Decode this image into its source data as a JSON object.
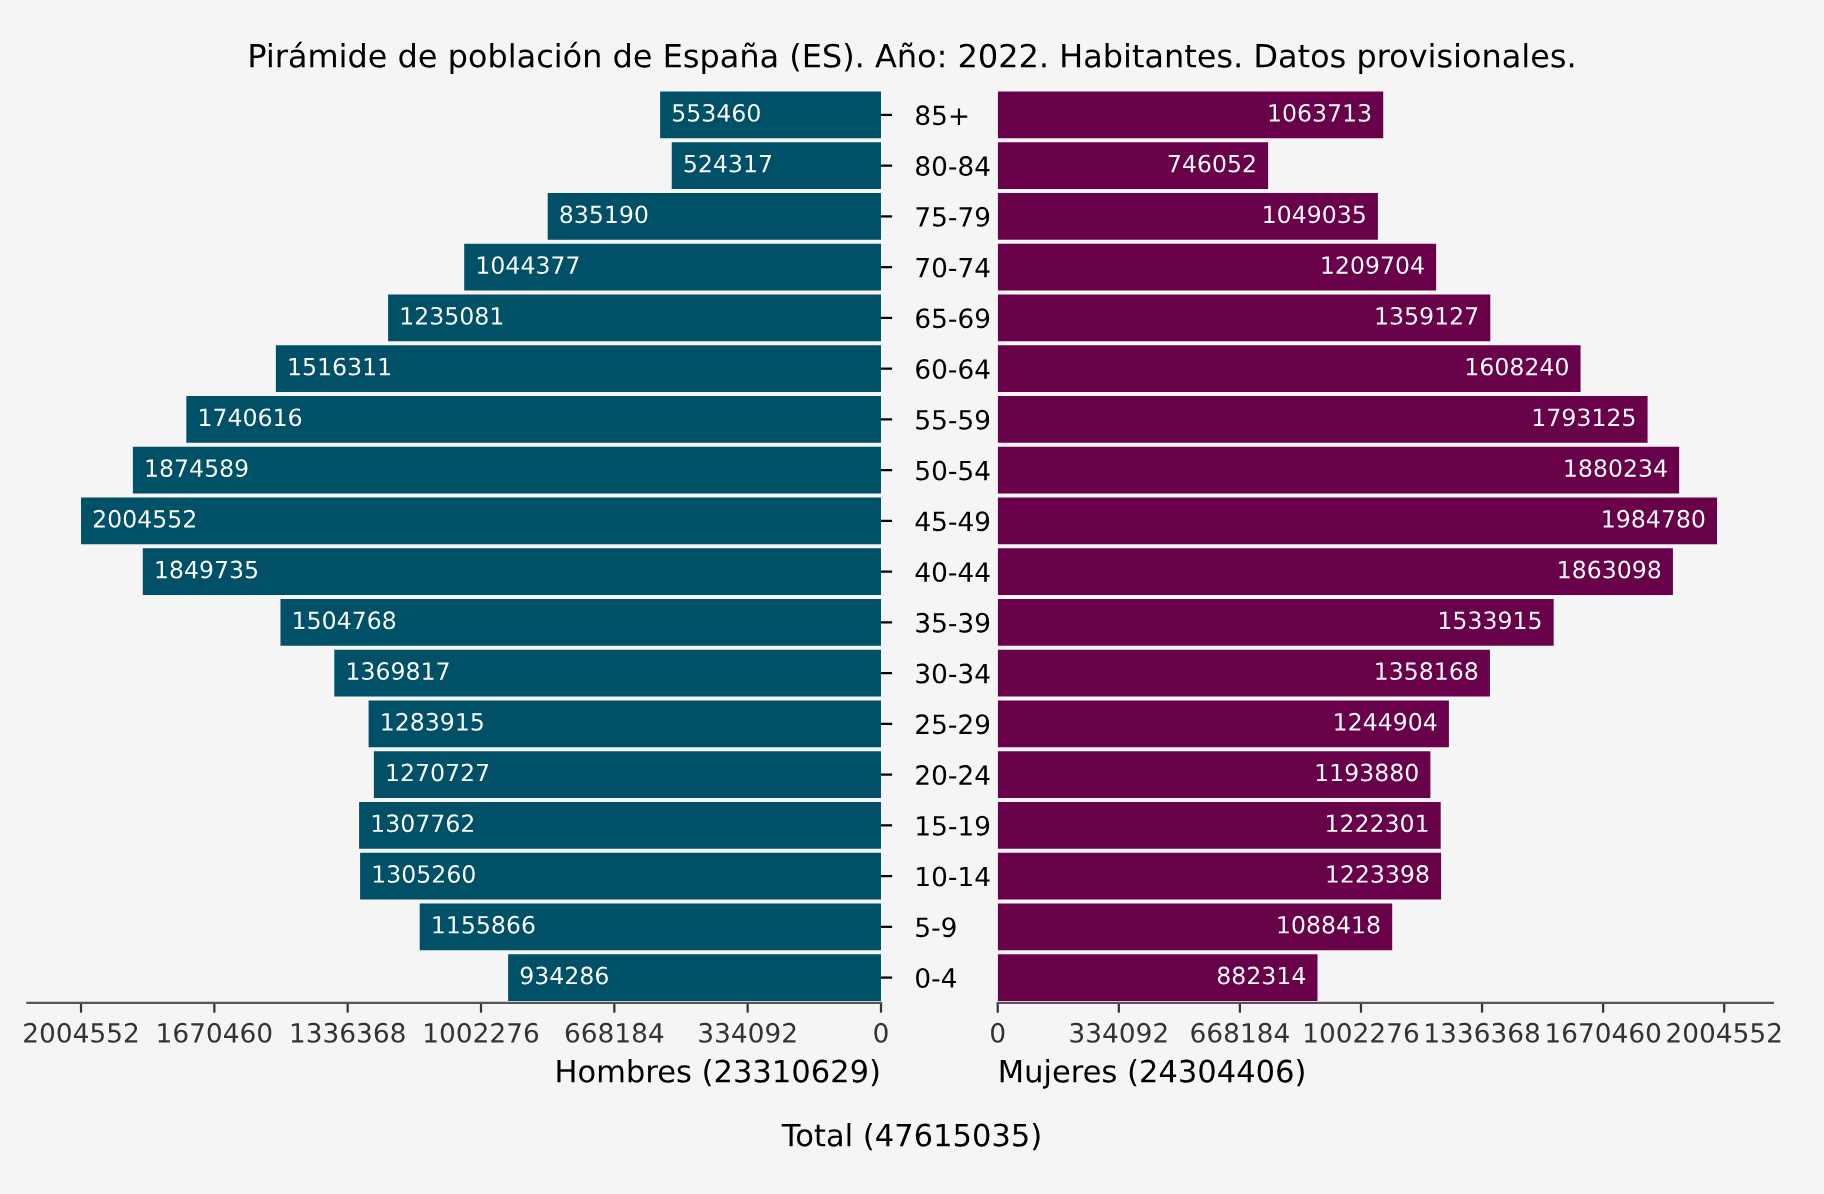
{
  "chart_data": [
    {
      "type": "bar",
      "orientation": "horizontal",
      "title": "Pirámide de población de España (ES). Año: 2022. Habitantes. Datos provisionales.",
      "xlabel": "Hombres (23310629)",
      "annotations": [
        "Total (47615035)"
      ],
      "categories": [
        "85+",
        "80-84",
        "75-79",
        "70-74",
        "65-69",
        "60-64",
        "55-59",
        "50-54",
        "45-49",
        "40-44",
        "35-39",
        "30-34",
        "25-29",
        "20-24",
        "15-19",
        "10-14",
        "5-9",
        "0-4"
      ],
      "values": [
        553460,
        524317,
        835190,
        1044377,
        1235081,
        1516311,
        1740616,
        1874589,
        2004552,
        1849735,
        1504768,
        1369817,
        1283915,
        1270727,
        1307762,
        1305260,
        1155866,
        934286
      ],
      "color": "#005068",
      "data_labels": true,
      "grid": false,
      "legend": false,
      "xlim": [
        2139000,
        0
      ],
      "xticks": [
        0,
        334092,
        668184,
        1002276,
        1336368,
        1670460,
        2004552
      ]
    },
    {
      "type": "bar",
      "orientation": "horizontal",
      "xlabel": "Mujeres (24304406)",
      "values": [
        1063713,
        746052,
        1049035,
        1209704,
        1359127,
        1608240,
        1793125,
        1880234,
        1984780,
        1863098,
        1533915,
        1358168,
        1244904,
        1193880,
        1222301,
        1223398,
        1088418,
        882314
      ],
      "color": "#68004a",
      "data_labels": true,
      "grid": false,
      "legend": false,
      "tick_labels": "x",
      "xlim": [
        0,
        2139000
      ],
      "xticks": [
        0,
        334092,
        668184,
        1002276,
        1336368,
        1670460,
        2004552
      ]
    }
  ]
}
